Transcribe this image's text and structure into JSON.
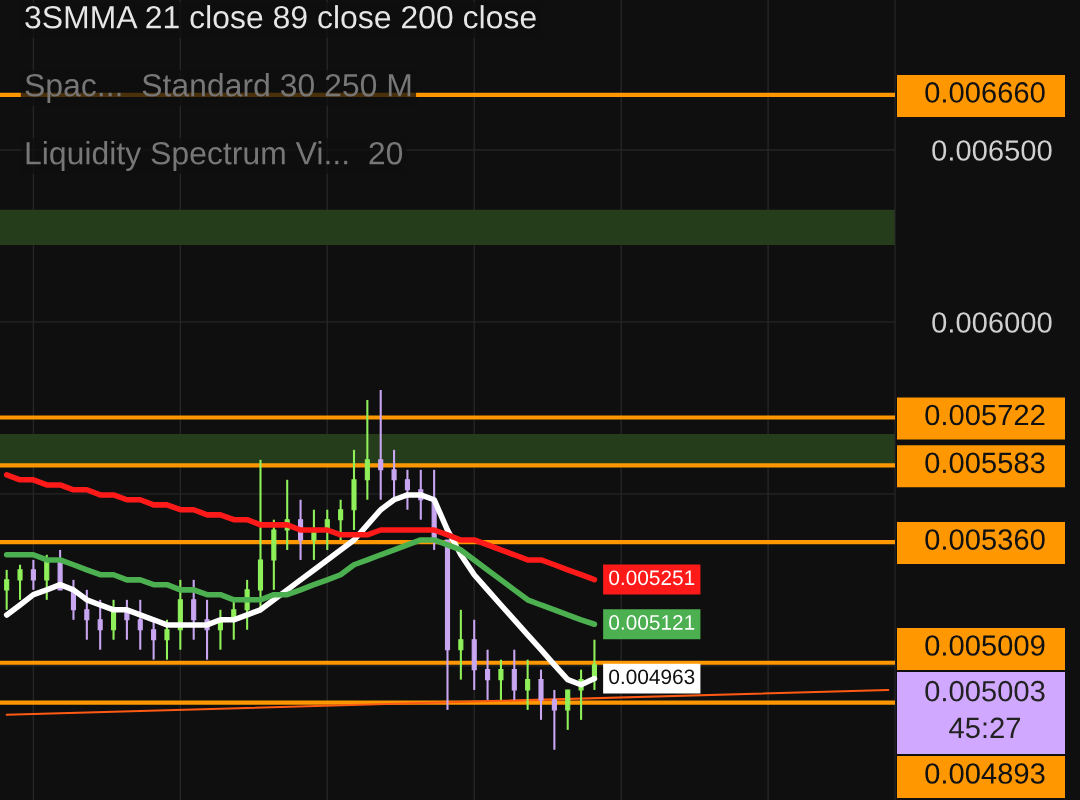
{
  "chart_data": {
    "type": "candlestick",
    "annotations": [
      "3SMMA 21 close 89 close 200 close",
      "Spac...  Standard 30 250 M",
      "Liquidity Spectrum Vi...  20",
      "0.005003\n45:27"
    ],
    "categories": [
      null,
      null,
      null,
      null,
      null,
      null,
      null,
      null,
      null,
      null,
      null,
      null,
      null,
      null,
      null,
      null,
      null,
      null,
      null,
      null,
      null,
      null,
      null,
      null,
      null,
      null,
      null,
      null,
      null,
      null,
      null,
      null,
      null,
      null,
      null,
      null,
      null,
      null,
      null,
      null,
      null,
      null,
      null,
      null,
      null,
      null,
      null,
      null,
      null,
      null,
      null,
      null,
      null,
      null,
      null,
      null,
      null,
      null,
      null,
      null,
      null,
      null,
      null,
      null,
      null,
      null,
      null
    ],
    "ohlc": [
      [
        0.005221,
        0.005279,
        0.005163,
        0.00525
      ],
      [
        0.00525,
        0.005294,
        0.005192,
        0.005279
      ],
      [
        0.005279,
        0.005308,
        0.005221,
        0.00525
      ],
      [
        0.00525,
        0.005323,
        0.005192,
        0.005308
      ],
      [
        0.005308,
        0.005337,
        0.005221,
        0.005221
      ],
      [
        0.005221,
        0.00525,
        0.005134,
        0.005163
      ],
      [
        0.005163,
        0.005221,
        0.005076,
        0.005134
      ],
      [
        0.005134,
        0.005192,
        0.005047,
        0.005105
      ],
      [
        0.005105,
        0.005192,
        0.005076,
        0.005163
      ],
      [
        0.005163,
        0.005192,
        0.005076,
        0.005134
      ],
      [
        0.005134,
        0.005192,
        0.005047,
        0.005105
      ],
      [
        0.005105,
        0.005134,
        0.005018,
        0.005076
      ],
      [
        0.005076,
        0.005134,
        0.005018,
        0.005105
      ],
      [
        0.005105,
        0.00525,
        0.005047,
        0.005192
      ],
      [
        0.005192,
        0.00525,
        0.005076,
        0.005134
      ],
      [
        0.005134,
        0.005192,
        0.005018,
        0.005105
      ],
      [
        0.005105,
        0.005163,
        0.005047,
        0.005134
      ],
      [
        0.005134,
        0.005192,
        0.005076,
        0.005163
      ],
      [
        0.005163,
        0.00525,
        0.005105,
        0.005221
      ],
      [
        0.005221,
        0.005599,
        0.005163,
        0.005308
      ],
      [
        0.005308,
        0.005425,
        0.005221,
        0.005395
      ],
      [
        0.005395,
        0.005541,
        0.005337,
        0.005425
      ],
      [
        0.005425,
        0.005483,
        0.005308,
        0.005366
      ],
      [
        0.005366,
        0.005454,
        0.005308,
        0.005395
      ],
      [
        0.005395,
        0.005454,
        0.005337,
        0.005425
      ],
      [
        0.005425,
        0.005483,
        0.005366,
        0.005454
      ],
      [
        0.005454,
        0.005628,
        0.005395,
        0.005541
      ],
      [
        0.005541,
        0.005773,
        0.005483,
        0.005599
      ],
      [
        0.005599,
        0.005802,
        0.005483,
        0.00557
      ],
      [
        0.00557,
        0.005628,
        0.005483,
        0.005541
      ],
      [
        0.005541,
        0.00557,
        0.005454,
        0.005512
      ],
      [
        0.005512,
        0.00557,
        0.005425,
        0.005483
      ],
      [
        0.005483,
        0.00557,
        0.005337,
        0.005366
      ],
      [
        0.005366,
        0.005366,
        0.004872,
        0.005047
      ],
      [
        0.005047,
        0.005163,
        0.00496,
        0.005076
      ],
      [
        0.005076,
        0.005134,
        0.00493,
        0.004989
      ],
      [
        0.004989,
        0.005047,
        0.004901,
        0.00496
      ],
      [
        0.00496,
        0.005018,
        0.004901,
        0.004989
      ],
      [
        0.004989,
        0.005047,
        0.004901,
        0.00493
      ],
      [
        0.00493,
        0.005018,
        0.004872,
        0.00496
      ],
      [
        0.00496,
        0.004989,
        0.004843,
        0.004901
      ],
      [
        0.004901,
        0.00493,
        0.004756,
        0.004872
      ],
      [
        0.004872,
        0.00493,
        0.004814,
        0.00493
      ],
      [
        0.00493,
        0.004989,
        0.004843,
        0.00496
      ],
      [
        0.00496,
        0.005076,
        0.00493,
        0.005003
      ],
      null,
      null,
      null,
      null,
      null,
      null,
      null,
      null,
      null,
      null,
      null,
      null,
      null,
      null,
      null,
      null,
      null,
      null,
      null,
      null,
      null,
      null
    ],
    "series": [
      {
        "type": "line",
        "color": "#ffffff",
        "values": [
          0.005148,
          0.005177,
          0.005207,
          0.005221,
          0.005236,
          0.005221,
          0.005192,
          0.005177,
          0.005163,
          0.005163,
          0.005148,
          0.005134,
          0.005119,
          0.005119,
          0.005119,
          0.005119,
          0.005134,
          0.005134,
          0.005148,
          0.005163,
          0.005192,
          0.005221,
          0.00525,
          0.005279,
          0.005308,
          0.005337,
          0.005366,
          0.00541,
          0.005454,
          0.005483,
          0.005497,
          0.005497,
          0.005483,
          0.005395,
          0.005323,
          0.005265,
          0.005221,
          0.005177,
          0.005134,
          0.00509,
          0.005047,
          0.005003,
          0.00496,
          0.004945,
          0.004963,
          null,
          null,
          null,
          null,
          null,
          null,
          null,
          null,
          null,
          null,
          null,
          null,
          null,
          null,
          null,
          null,
          null,
          null,
          null,
          null,
          null,
          null
        ],
        "value_labels": [
          null,
          null,
          null,
          null,
          null,
          null,
          null,
          null,
          null,
          null,
          null,
          null,
          null,
          null,
          null,
          null,
          null,
          null,
          null,
          null,
          null,
          null,
          null,
          null,
          null,
          null,
          null,
          null,
          null,
          null,
          null,
          null,
          null,
          null,
          null,
          null,
          null,
          null,
          null,
          null,
          null,
          null,
          null,
          null,
          "0.004963",
          null,
          null,
          null,
          null,
          null,
          null,
          null,
          null,
          null,
          null,
          null,
          null,
          null,
          null,
          null,
          null,
          null,
          null,
          null,
          null,
          null,
          null
        ]
      },
      {
        "type": "line",
        "color": "#4caf50",
        "values": [
          0.005323,
          0.005323,
          0.005323,
          0.005308,
          0.005308,
          0.005294,
          0.005279,
          0.005265,
          0.005265,
          0.00525,
          0.00525,
          0.005236,
          0.005236,
          0.005221,
          0.005221,
          0.005207,
          0.005207,
          0.005192,
          0.005192,
          0.005192,
          0.005207,
          0.005207,
          0.005221,
          0.005236,
          0.00525,
          0.005265,
          0.005294,
          0.005308,
          0.005323,
          0.005337,
          0.005352,
          0.005366,
          0.005366,
          0.005352,
          0.005337,
          0.005308,
          0.005279,
          0.00525,
          0.005221,
          0.005192,
          0.005177,
          0.005163,
          0.005148,
          0.005134,
          0.005121,
          null,
          null,
          null,
          null,
          null,
          null,
          null,
          null,
          null,
          null,
          null,
          null,
          null,
          null,
          null,
          null,
          null,
          null,
          null,
          null,
          null,
          null
        ],
        "value_labels": [
          null,
          null,
          null,
          null,
          null,
          null,
          null,
          null,
          null,
          null,
          null,
          null,
          null,
          null,
          null,
          null,
          null,
          null,
          null,
          null,
          null,
          null,
          null,
          null,
          null,
          null,
          null,
          null,
          null,
          null,
          null,
          null,
          null,
          null,
          null,
          null,
          null,
          null,
          null,
          null,
          null,
          null,
          null,
          null,
          "0.005121",
          null,
          null,
          null,
          null,
          null,
          null,
          null,
          null,
          null,
          null,
          null,
          null,
          null,
          null,
          null,
          null,
          null,
          null,
          null,
          null,
          null,
          null
        ]
      },
      {
        "type": "line",
        "color": "#ff1a1a",
        "values": [
          0.005555,
          0.005541,
          0.005541,
          0.005526,
          0.005526,
          0.005512,
          0.005512,
          0.005497,
          0.005497,
          0.005483,
          0.005483,
          0.005468,
          0.005468,
          0.005454,
          0.005454,
          0.005439,
          0.005439,
          0.005425,
          0.005425,
          0.00541,
          0.00541,
          0.00541,
          0.005395,
          0.005395,
          0.005395,
          0.005381,
          0.005381,
          0.005381,
          0.005395,
          0.005395,
          0.005395,
          0.005395,
          0.005395,
          0.005381,
          0.005366,
          0.005366,
          0.005352,
          0.005337,
          0.005323,
          0.005308,
          0.005308,
          0.005294,
          0.005279,
          0.005265,
          0.005251,
          null,
          null,
          null,
          null,
          null,
          null,
          null,
          null,
          null,
          null,
          null,
          null,
          null,
          null,
          null,
          null,
          null,
          null,
          null,
          null,
          null,
          null
        ],
        "value_labels": [
          null,
          null,
          null,
          null,
          null,
          null,
          null,
          null,
          null,
          null,
          null,
          null,
          null,
          null,
          null,
          null,
          null,
          null,
          null,
          null,
          null,
          null,
          null,
          null,
          null,
          null,
          null,
          null,
          null,
          null,
          null,
          null,
          null,
          null,
          null,
          null,
          null,
          null,
          null,
          null,
          null,
          null,
          null,
          null,
          "0.005251",
          null,
          null,
          null,
          null,
          null,
          null,
          null,
          null,
          null,
          null,
          null,
          null,
          null,
          null,
          null,
          null,
          null,
          null,
          null,
          null,
          null,
          null
        ]
      },
      {
        "type": "line",
        "color": "#ff5a14",
        "values": [
          0.004858,
          null,
          null,
          null,
          null,
          null,
          null,
          null,
          null,
          null,
          null,
          null,
          null,
          null,
          null,
          null,
          null,
          null,
          null,
          null,
          null,
          null,
          null,
          null,
          null,
          null,
          null,
          null,
          null,
          null,
          null,
          null,
          null,
          null,
          null,
          null,
          null,
          null,
          null,
          null,
          null,
          null,
          null,
          null,
          null,
          null,
          null,
          null,
          null,
          null,
          null,
          null,
          null,
          null,
          null,
          null,
          null,
          null,
          null,
          null,
          null,
          null,
          null,
          null,
          null,
          null,
          0.00493
        ]
      }
    ],
    "ref_lines": [
      {
        "axis": "y",
        "value": 0.00666,
        "label": "0.006660",
        "color": "#ff9800"
      },
      {
        "axis": "y",
        "value": 0.005722,
        "label": "0.005722",
        "color": "#ff9800"
      },
      {
        "axis": "y",
        "value": 0.005583,
        "label": "0.005583",
        "color": "#ff9800"
      },
      {
        "axis": "y",
        "value": 0.00536,
        "label": "0.005360",
        "color": "#ff9800"
      },
      {
        "axis": "y",
        "value": 0.005009,
        "label": "0.005009",
        "color": "#ff9800"
      },
      {
        "axis": "y",
        "value": 0.004893,
        "label": "0.004893",
        "color": "#ff9800"
      }
    ],
    "bands": [
      {
        "axis": "y",
        "from": 0.006224,
        "to": 0.006326,
        "color": "#263d1c"
      },
      {
        "axis": "y",
        "from": 0.005587,
        "to": 0.005674,
        "color": "#263d1c"
      }
    ],
    "ylim": [
      0.00461,
      0.006936
    ],
    "yticks": [
      {
        "value": 0.005,
        "label": null
      },
      {
        "value": 0.0055,
        "label": null
      },
      {
        "value": 0.006,
        "label": "0.006000"
      },
      {
        "value": 0.0065,
        "label": "0.006500"
      }
    ],
    "tick_labels": "y",
    "grid": true
  }
}
